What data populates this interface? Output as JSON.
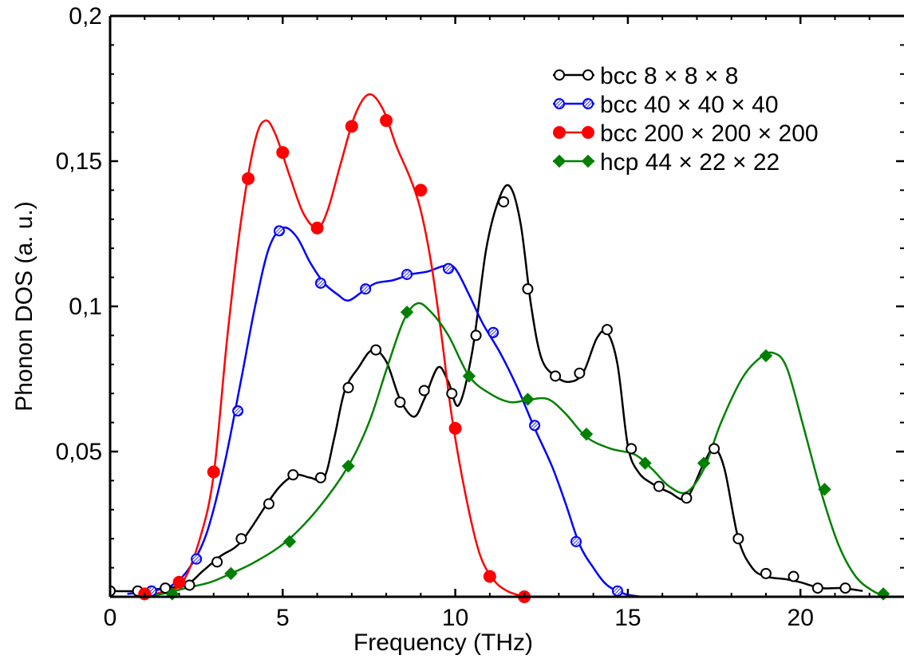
{
  "chart_data": {
    "type": "line",
    "title": "",
    "xlabel": "Frequency (THz)",
    "ylabel": "Phonon DOS (a. u.)",
    "xlim": [
      0,
      23
    ],
    "ylim": [
      0,
      0.2
    ],
    "x_ticks": [
      0,
      5,
      10,
      15,
      20
    ],
    "x_tick_labels": [
      "0",
      "5",
      "10",
      "15",
      "20"
    ],
    "y_ticks": [
      0.05,
      0.1,
      0.15,
      0.2
    ],
    "y_tick_labels": [
      "0,05",
      "0,1",
      "0,15",
      "0,2"
    ],
    "grid": false,
    "legend_position": "top-right",
    "series": [
      {
        "name": "bcc 8 × 8 × 8",
        "color": "#000000",
        "marker": "open-circle",
        "curve": [
          [
            0,
            0.002
          ],
          [
            0.8,
            0.002
          ],
          [
            1.6,
            0.003
          ],
          [
            2.2,
            0.004
          ],
          [
            2.7,
            0.009
          ],
          [
            3.2,
            0.014
          ],
          [
            3.8,
            0.019
          ],
          [
            4.6,
            0.033
          ],
          [
            5,
            0.039
          ],
          [
            5.4,
            0.042
          ],
          [
            5.8,
            0.041
          ],
          [
            6.2,
            0.041
          ],
          [
            6.5,
            0.055
          ],
          [
            6.8,
            0.071
          ],
          [
            7.2,
            0.079
          ],
          [
            7.6,
            0.085
          ],
          [
            8,
            0.081
          ],
          [
            8.4,
            0.068
          ],
          [
            8.8,
            0.062
          ],
          [
            9.1,
            0.068
          ],
          [
            9.5,
            0.079
          ],
          [
            9.8,
            0.074
          ],
          [
            10.1,
            0.066
          ],
          [
            10.5,
            0.085
          ],
          [
            10.9,
            0.12
          ],
          [
            11.3,
            0.138
          ],
          [
            11.6,
            0.141
          ],
          [
            11.9,
            0.128
          ],
          [
            12.2,
            0.1
          ],
          [
            12.5,
            0.082
          ],
          [
            12.9,
            0.076
          ],
          [
            13.3,
            0.074
          ],
          [
            13.7,
            0.077
          ],
          [
            14.1,
            0.089
          ],
          [
            14.4,
            0.091
          ],
          [
            14.7,
            0.08
          ],
          [
            15,
            0.052
          ],
          [
            15.3,
            0.043
          ],
          [
            15.7,
            0.039
          ],
          [
            16.2,
            0.036
          ],
          [
            16.7,
            0.034
          ],
          [
            17.2,
            0.046
          ],
          [
            17.5,
            0.051
          ],
          [
            17.8,
            0.044
          ],
          [
            18.2,
            0.02
          ],
          [
            18.6,
            0.01
          ],
          [
            19,
            0.007
          ],
          [
            19.6,
            0.006
          ],
          [
            20,
            0.005
          ],
          [
            20.6,
            0.003
          ],
          [
            21.2,
            0.003
          ],
          [
            21.8,
            0.002
          ]
        ],
        "markers": [
          [
            0,
            0.002
          ],
          [
            0.8,
            0.002
          ],
          [
            1.6,
            0.003
          ],
          [
            2.3,
            0.004
          ],
          [
            3.1,
            0.012
          ],
          [
            3.8,
            0.02
          ],
          [
            4.6,
            0.032
          ],
          [
            5.3,
            0.042
          ],
          [
            6.1,
            0.041
          ],
          [
            6.9,
            0.072
          ],
          [
            7.7,
            0.085
          ],
          [
            8.4,
            0.067
          ],
          [
            9.1,
            0.071
          ],
          [
            9.9,
            0.07
          ],
          [
            10.6,
            0.09
          ],
          [
            11.4,
            0.136
          ],
          [
            12.1,
            0.106
          ],
          [
            12.9,
            0.076
          ],
          [
            13.6,
            0.077
          ],
          [
            14.4,
            0.092
          ],
          [
            15.1,
            0.051
          ],
          [
            15.9,
            0.038
          ],
          [
            16.7,
            0.034
          ],
          [
            17.5,
            0.051
          ],
          [
            18.2,
            0.02
          ],
          [
            19,
            0.008
          ],
          [
            19.8,
            0.007
          ],
          [
            20.5,
            0.003
          ],
          [
            21.3,
            0.003
          ]
        ]
      },
      {
        "name": "bcc 40 × 40 × 40",
        "color": "#0000ff",
        "marker": "hatched-circle",
        "curve": [
          [
            0.5,
            0.001
          ],
          [
            1.2,
            0.002
          ],
          [
            1.8,
            0.004
          ],
          [
            2.3,
            0.01
          ],
          [
            2.8,
            0.022
          ],
          [
            3.3,
            0.045
          ],
          [
            3.8,
            0.075
          ],
          [
            4.2,
            0.1
          ],
          [
            4.6,
            0.12
          ],
          [
            5,
            0.127
          ],
          [
            5.4,
            0.124
          ],
          [
            5.8,
            0.115
          ],
          [
            6.2,
            0.108
          ],
          [
            6.6,
            0.104
          ],
          [
            6.9,
            0.102
          ],
          [
            7.3,
            0.105
          ],
          [
            7.7,
            0.108
          ],
          [
            8.2,
            0.109
          ],
          [
            8.7,
            0.111
          ],
          [
            9.2,
            0.112
          ],
          [
            9.7,
            0.114
          ],
          [
            10,
            0.113
          ],
          [
            10.4,
            0.104
          ],
          [
            10.8,
            0.094
          ],
          [
            11.3,
            0.084
          ],
          [
            11.8,
            0.072
          ],
          [
            12.3,
            0.058
          ],
          [
            12.8,
            0.045
          ],
          [
            13.2,
            0.032
          ],
          [
            13.6,
            0.018
          ],
          [
            14,
            0.01
          ],
          [
            14.4,
            0.004
          ],
          [
            14.9,
            0.001
          ],
          [
            15.4,
            0
          ]
        ],
        "markers": [
          [
            1.2,
            0.002
          ],
          [
            2.5,
            0.013
          ],
          [
            3.7,
            0.064
          ],
          [
            4.9,
            0.126
          ],
          [
            6.1,
            0.108
          ],
          [
            7.4,
            0.106
          ],
          [
            8.6,
            0.111
          ],
          [
            9.8,
            0.113
          ],
          [
            11.1,
            0.091
          ],
          [
            12.3,
            0.059
          ],
          [
            13.5,
            0.019
          ],
          [
            14.7,
            0.002
          ]
        ]
      },
      {
        "name": "bcc 200 × 200 × 200",
        "color": "#ff0000",
        "marker": "filled-circle",
        "curve": [
          [
            1,
            0
          ],
          [
            1.6,
            0.002
          ],
          [
            2.1,
            0.005
          ],
          [
            2.6,
            0.02
          ],
          [
            3,
            0.042
          ],
          [
            3.4,
            0.09
          ],
          [
            3.8,
            0.13
          ],
          [
            4.2,
            0.157
          ],
          [
            4.5,
            0.164
          ],
          [
            4.8,
            0.159
          ],
          [
            5.2,
            0.145
          ],
          [
            5.6,
            0.132
          ],
          [
            6,
            0.127
          ],
          [
            6.3,
            0.133
          ],
          [
            6.7,
            0.15
          ],
          [
            7.1,
            0.166
          ],
          [
            7.5,
            0.173
          ],
          [
            7.9,
            0.168
          ],
          [
            8.3,
            0.155
          ],
          [
            8.7,
            0.144
          ],
          [
            9,
            0.133
          ],
          [
            9.3,
            0.115
          ],
          [
            9.6,
            0.09
          ],
          [
            9.9,
            0.062
          ],
          [
            10.3,
            0.035
          ],
          [
            10.7,
            0.015
          ],
          [
            11.1,
            0.006
          ],
          [
            11.5,
            0.002
          ],
          [
            12,
            0
          ]
        ],
        "markers": [
          [
            1,
            0.001
          ],
          [
            2,
            0.005
          ],
          [
            3,
            0.043
          ],
          [
            4,
            0.144
          ],
          [
            5,
            0.153
          ],
          [
            6,
            0.127
          ],
          [
            7,
            0.162
          ],
          [
            8,
            0.164
          ],
          [
            9,
            0.14
          ],
          [
            10,
            0.058
          ],
          [
            11,
            0.007
          ],
          [
            12,
            0
          ]
        ]
      },
      {
        "name": "hcp 44 × 22 × 22",
        "color": "#008000",
        "marker": "filled-diamond",
        "curve": [
          [
            0.8,
            0
          ],
          [
            1.5,
            0.001
          ],
          [
            2.2,
            0.003
          ],
          [
            2.9,
            0.005
          ],
          [
            3.5,
            0.008
          ],
          [
            4.2,
            0.012
          ],
          [
            5.1,
            0.019
          ],
          [
            6,
            0.03
          ],
          [
            6.9,
            0.045
          ],
          [
            7.5,
            0.06
          ],
          [
            8,
            0.078
          ],
          [
            8.5,
            0.095
          ],
          [
            8.9,
            0.101
          ],
          [
            9.3,
            0.098
          ],
          [
            9.8,
            0.09
          ],
          [
            10.4,
            0.076
          ],
          [
            11,
            0.07
          ],
          [
            11.6,
            0.067
          ],
          [
            12.2,
            0.068
          ],
          [
            12.7,
            0.068
          ],
          [
            13.2,
            0.063
          ],
          [
            13.8,
            0.055
          ],
          [
            14.5,
            0.051
          ],
          [
            15.2,
            0.049
          ],
          [
            15.7,
            0.044
          ],
          [
            16.2,
            0.038
          ],
          [
            16.7,
            0.036
          ],
          [
            17.2,
            0.044
          ],
          [
            17.7,
            0.06
          ],
          [
            18.3,
            0.075
          ],
          [
            18.8,
            0.082
          ],
          [
            19.2,
            0.084
          ],
          [
            19.6,
            0.079
          ],
          [
            20.1,
            0.058
          ],
          [
            20.6,
            0.036
          ],
          [
            21.1,
            0.018
          ],
          [
            21.6,
            0.007
          ],
          [
            22.1,
            0.002
          ],
          [
            22.5,
            0
          ]
        ],
        "markers": [
          [
            1.8,
            0.001
          ],
          [
            3.5,
            0.008
          ],
          [
            5.2,
            0.019
          ],
          [
            6.9,
            0.045
          ],
          [
            8.6,
            0.098
          ],
          [
            10.4,
            0.076
          ],
          [
            12.1,
            0.068
          ],
          [
            13.8,
            0.056
          ],
          [
            15.5,
            0.046
          ],
          [
            17.2,
            0.046
          ],
          [
            19,
            0.083
          ],
          [
            20.7,
            0.037
          ],
          [
            22.4,
            0.001
          ]
        ]
      }
    ]
  }
}
